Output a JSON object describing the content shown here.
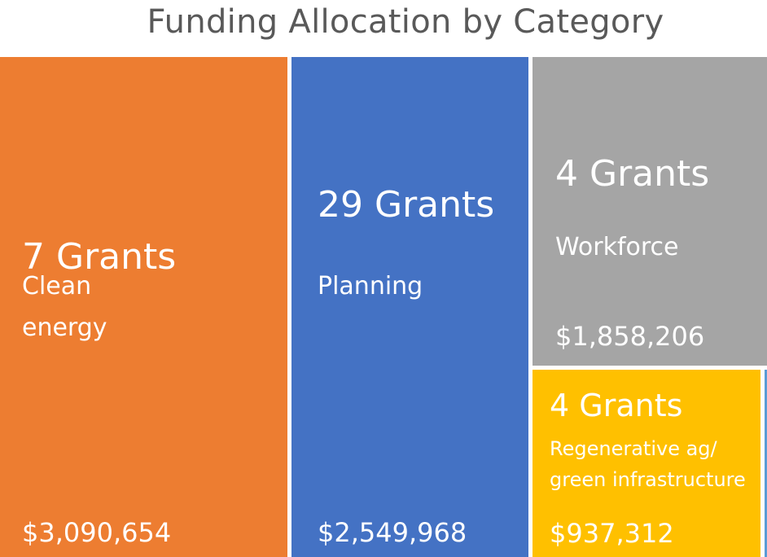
{
  "chart_data": {
    "type": "treemap",
    "title": "Funding Allocation by Category",
    "items": [
      {
        "grants": "7 Grants",
        "category_lines": [
          "Clean",
          "energy"
        ],
        "amount": "$3,090,654",
        "value": 3090654,
        "color": "#ED7D31"
      },
      {
        "grants": "29 Grants",
        "category_lines": [
          "Planning"
        ],
        "amount": "$2,549,968",
        "value": 2549968,
        "color": "#4472C4"
      },
      {
        "grants": "4 Grants",
        "category_lines": [
          "Workforce"
        ],
        "amount": "$1,858,206",
        "value": 1858206,
        "color": "#A5A5A5"
      },
      {
        "grants": "4 Grants",
        "category_lines": [
          "Regenerative ag/",
          "green infrastructure"
        ],
        "amount": "$937,312",
        "value": 937312,
        "color": "#FFC000"
      }
    ],
    "edge_color": "#5B9BD5"
  }
}
